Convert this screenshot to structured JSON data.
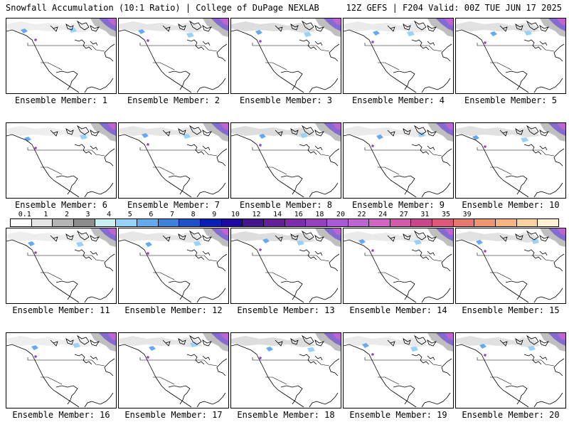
{
  "header": {
    "left": "Snowfall Accumulation (10:1 Ratio) | College of DuPage NEXLAB",
    "right": "12Z GEFS | F204 Valid: 00Z TUE JUN 17 2025"
  },
  "colorbar": {
    "labels": [
      "0.1",
      "1",
      "2",
      "3",
      "4",
      "5",
      "6",
      "7",
      "8",
      "9",
      "10",
      "12",
      "14",
      "16",
      "18",
      "20",
      "22",
      "24",
      "27",
      "31",
      "35",
      "39"
    ],
    "colors": [
      "#ffffff",
      "#e6e6e6",
      "#b4b4b4",
      "#8c8c8c",
      "#c8f0f0",
      "#96d2fa",
      "#64aaf0",
      "#3c82dc",
      "#1e50c8",
      "#0a1eb4",
      "#1e0aa0",
      "#46148c",
      "#641e96",
      "#7d2dab",
      "#9640be",
      "#aa5ad2",
      "#c064d2",
      "#d264c3",
      "#d25aaa",
      "#c8468c",
      "#dc5a78",
      "#e6786e",
      "#f0966e",
      "#f5b482",
      "#fad2a0",
      "#fff0d2"
    ]
  },
  "panels": [
    {
      "label": "Ensemble Member: 1"
    },
    {
      "label": "Ensemble Member: 2"
    },
    {
      "label": "Ensemble Member: 3"
    },
    {
      "label": "Ensemble Member: 4"
    },
    {
      "label": "Ensemble Member: 5"
    },
    {
      "label": "Ensemble Member: 6"
    },
    {
      "label": "Ensemble Member: 7"
    },
    {
      "label": "Ensemble Member: 8"
    },
    {
      "label": "Ensemble Member: 9"
    },
    {
      "label": "Ensemble Member: 10"
    },
    {
      "label": "Ensemble Member: 11"
    },
    {
      "label": "Ensemble Member: 12"
    },
    {
      "label": "Ensemble Member: 13"
    },
    {
      "label": "Ensemble Member: 14"
    },
    {
      "label": "Ensemble Member: 15"
    },
    {
      "label": "Ensemble Member: 16"
    },
    {
      "label": "Ensemble Member: 17"
    },
    {
      "label": "Ensemble Member: 18"
    },
    {
      "label": "Ensemble Member: 19"
    },
    {
      "label": "Ensemble Member: 20"
    }
  ]
}
